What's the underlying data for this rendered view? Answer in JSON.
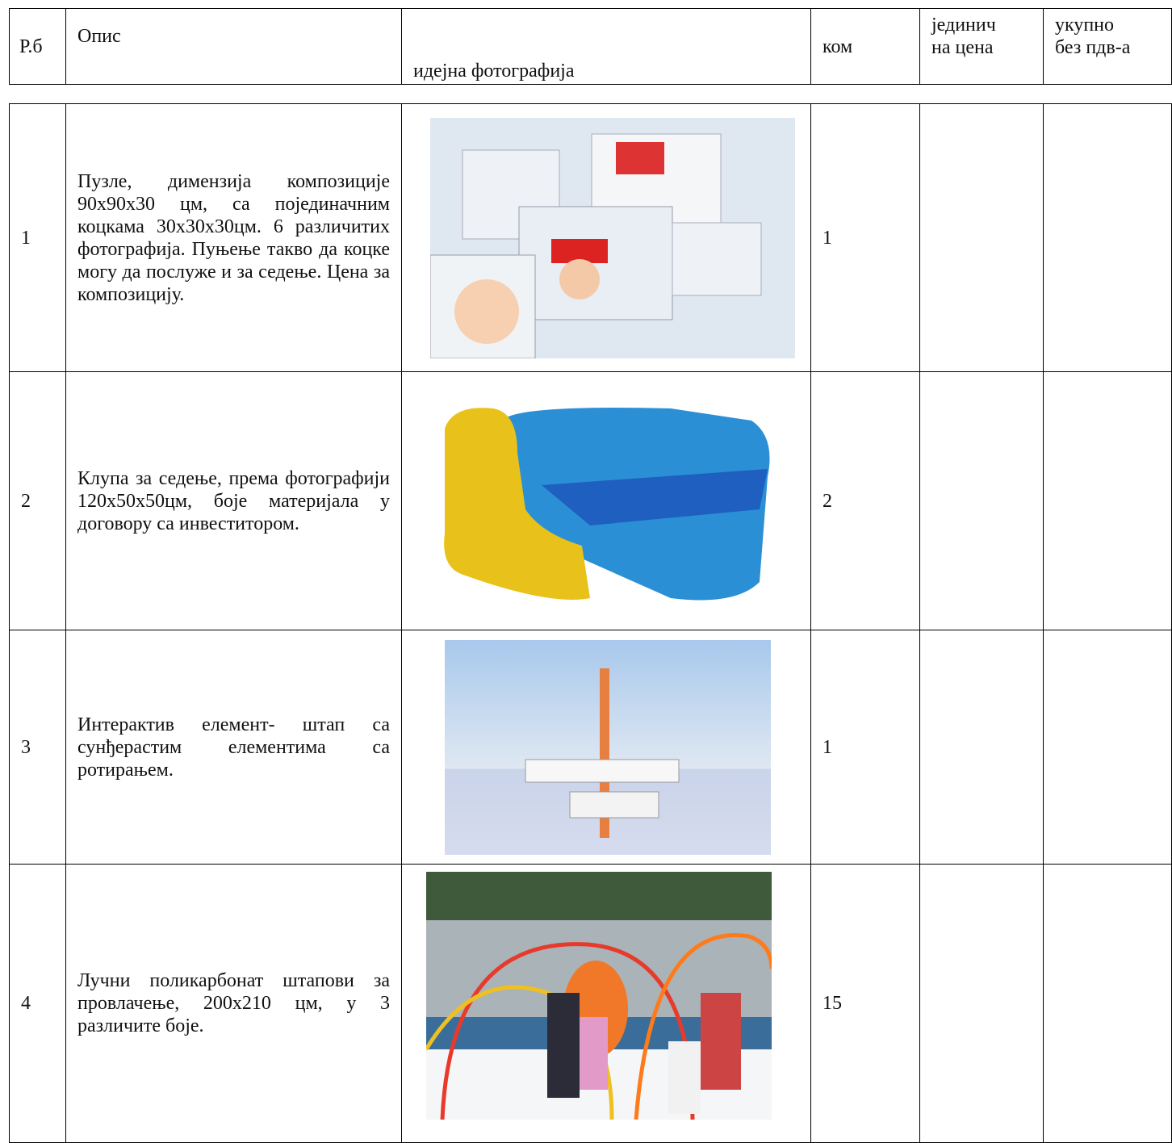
{
  "header": {
    "cells": [
      "Р.б",
      "Опис",
      "идејна фотографија",
      "ком",
      [
        "јединич",
        "на цена"
      ],
      [
        "укупно",
        "без пдв-а"
      ]
    ]
  },
  "rows": [
    {
      "number": "1",
      "description": "Пузле, димензија композиције 90x90x30 цм, са појединачним коцкама 30x30x30цм. 6 различитих фотографија. Пуњење такво да коцке могу да послуже и за седење. Цена за композицију.",
      "quantity": "1"
    },
    {
      "number": "2",
      "description": "Клупа за седење, према фотографији 120x50x50цм, боје материјала у договору са инвеститором.",
      "quantity": "2"
    },
    {
      "number": "3",
      "description": "Интерактив елемент- штап са сунђерастим елементима са ротирањем.",
      "quantity": "1"
    },
    {
      "number": "4",
      "description": "Лучни поликарбонат штапови за провлачење, 200x210 цм, у 3 различите боје.",
      "quantity": "15"
    }
  ]
}
